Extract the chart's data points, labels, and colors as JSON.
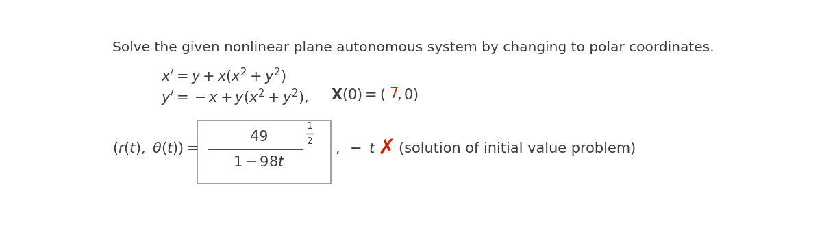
{
  "title": "Solve the given nonlinear plane autonomous system by changing to polar coordinates.",
  "bg_color": "#ffffff",
  "text_color": "#3c3c3c",
  "red_color": "#cc2200",
  "box_edge_color": "#999999",
  "title_fontsize": 14.5,
  "eq_fontsize": 15,
  "math_fontsize": 15,
  "small_fontsize": 11
}
